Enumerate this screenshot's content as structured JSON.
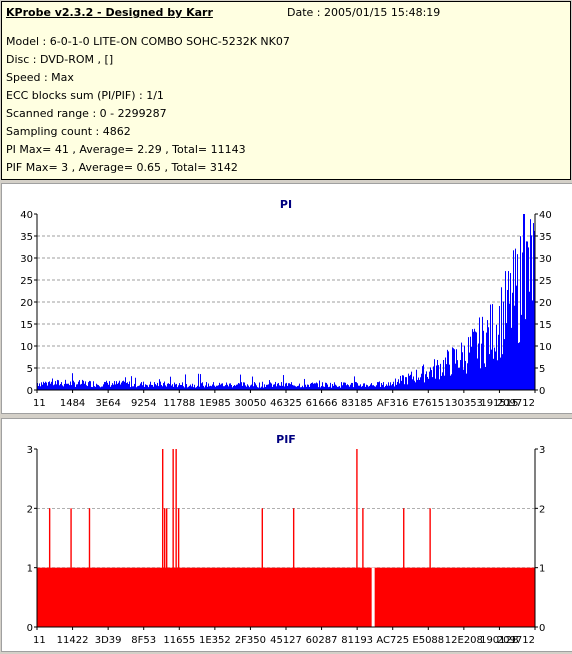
{
  "header": {
    "title": "KProbe v2.3.2 - Designed by Karr",
    "date": "Date : 2005/01/15 15:48:19",
    "lines": [
      "Model : 6-0-1-0 LITE-ON COMBO SOHC-5232K NK07",
      "Disc : DVD-ROM ,  []",
      "Speed : Max",
      "ECC blocks sum (PI/PIF) : 1/1",
      "Scanned range : 0 - 2299287",
      "Sampling count : 4862",
      "PI Max= 41 , Average= 2.29 , Total= 11143",
      "PIF Max= 3 , Average= 0.65 , Total= 3142"
    ]
  },
  "chart_data": [
    {
      "type": "bar",
      "title": "PI",
      "color": "#0000ff",
      "ylim": [
        0,
        40
      ],
      "yticks": [
        0,
        5,
        10,
        15,
        20,
        25,
        30,
        35,
        40
      ],
      "grid": true,
      "xtick_labels": [
        "11",
        "1484",
        "3E64",
        "9254",
        "11788",
        "1E985",
        "30050",
        "46325",
        "61666",
        "83185",
        "AF316",
        "E7615",
        "130353",
        "191515",
        "209712"
      ],
      "profile": [
        {
          "x": 0.0,
          "y": 2.0
        },
        {
          "x": 0.3,
          "y": 1.5
        },
        {
          "x": 0.7,
          "y": 1.5
        },
        {
          "x": 0.74,
          "y": 3.0
        },
        {
          "x": 0.8,
          "y": 6.0
        },
        {
          "x": 0.86,
          "y": 10.0
        },
        {
          "x": 0.91,
          "y": 16.0
        },
        {
          "x": 0.95,
          "y": 24.0
        },
        {
          "x": 0.98,
          "y": 32.0
        },
        {
          "x": 1.0,
          "y": 36.0
        }
      ],
      "peak": 41
    },
    {
      "type": "bar",
      "title": "PIF",
      "color": "#ff0000",
      "ylim": [
        0,
        3
      ],
      "yticks": [
        0,
        1,
        2,
        3
      ],
      "grid": true,
      "xtick_labels": [
        "11",
        "11422",
        "3D39",
        "8F53",
        "11655",
        "1E352",
        "2F350",
        "45127",
        "60287",
        "81193",
        "AC725",
        "E5088",
        "12E208",
        "19012B",
        "209712"
      ],
      "baseline": 1,
      "gap": {
        "x": 0.672,
        "y": 0
      },
      "spikes": [
        {
          "x": 0.024,
          "y": 2
        },
        {
          "x": 0.067,
          "y": 2
        },
        {
          "x": 0.104,
          "y": 2
        },
        {
          "x": 0.251,
          "y": 3
        },
        {
          "x": 0.255,
          "y": 2
        },
        {
          "x": 0.259,
          "y": 2
        },
        {
          "x": 0.272,
          "y": 3
        },
        {
          "x": 0.278,
          "y": 3
        },
        {
          "x": 0.283,
          "y": 2
        },
        {
          "x": 0.451,
          "y": 2
        },
        {
          "x": 0.514,
          "y": 2
        },
        {
          "x": 0.641,
          "y": 3
        },
        {
          "x": 0.653,
          "y": 2
        },
        {
          "x": 0.735,
          "y": 2
        },
        {
          "x": 0.788,
          "y": 2
        }
      ]
    }
  ]
}
